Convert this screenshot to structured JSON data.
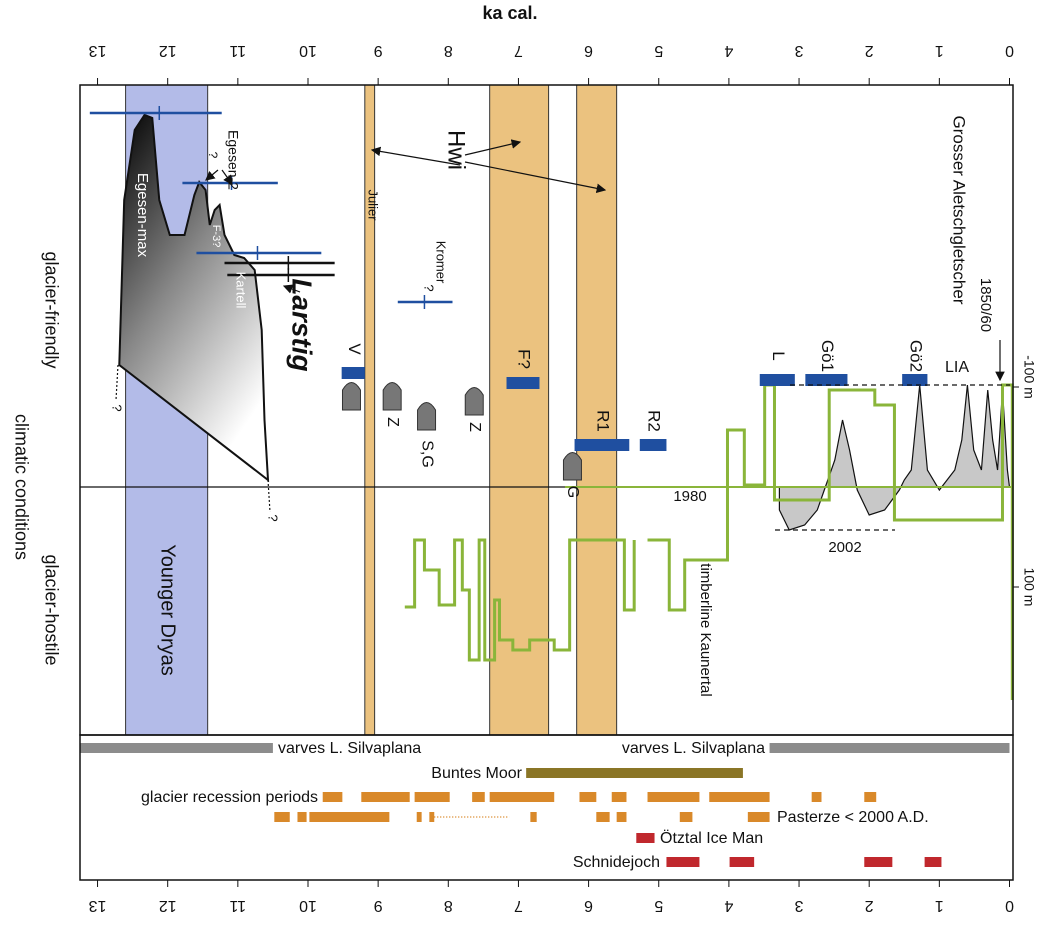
{
  "chart_data": {
    "type": "timeline",
    "xlabel": "ka cal.",
    "xlim": [
      13.25,
      -0.05
    ],
    "xticks": [
      13,
      12,
      11,
      10,
      9,
      8,
      7,
      6,
      5,
      4,
      3,
      2,
      1,
      0
    ],
    "ylim": [
      248,
      -402
    ],
    "yticks": [
      {
        "value": -100,
        "label": "-100 m"
      },
      {
        "value": 100,
        "label": "100 m"
      }
    ],
    "side_labels": [
      "glacier-friendly",
      "climatic conditions",
      "glacier-hostile"
    ],
    "bands": [
      {
        "range": [
          12.6,
          11.43
        ],
        "color": "#b3bbe8"
      },
      {
        "range": [
          9.19,
          9.05
        ],
        "color": "#ebc27f"
      },
      {
        "range": [
          7.41,
          6.57
        ],
        "color": "#ebc27f"
      },
      {
        "range": [
          6.17,
          5.6
        ],
        "color": "#ebc27f"
      }
    ],
    "aletsch": {
      "color": "#c8c8c8",
      "x": [
        3.28,
        3.14,
        2.92,
        2.74,
        2.64,
        2.49,
        2.38,
        2.28,
        2.17,
        2.0,
        1.78,
        1.57,
        1.5,
        1.4,
        1.28,
        1.17,
        1.0,
        0.78,
        0.68,
        0.6,
        0.51,
        0.4,
        0.31,
        0.24,
        0.17,
        0.1,
        0.03,
        0.0
      ],
      "y": [
        23,
        43,
        38,
        23,
        3,
        -27,
        -67,
        -37,
        3,
        28,
        23,
        3,
        -7,
        -17,
        -102,
        -17,
        3,
        -17,
        -47,
        -102,
        -37,
        -17,
        -97,
        -47,
        -17,
        -97,
        -17,
        0
      ]
    },
    "timberline": {
      "color": "#8ab53a",
      "x": [
        -0.04,
        -0.04,
        0.1,
        0.1,
        1.64,
        1.64,
        1.92,
        1.92,
        2.57,
        2.57,
        3.35,
        3.35,
        3.49,
        3.49,
        3.78,
        3.78,
        4.02,
        4.02,
        4.63,
        4.63,
        4.85,
        4.85,
        5.16,
        null,
        5.35,
        5.35,
        5.49,
        5.49,
        6.27,
        6.27,
        6.49,
        6.49,
        6.84,
        6.84,
        7.08,
        7.08,
        7.27,
        7.27,
        7.34,
        7.34,
        7.48,
        7.48,
        7.56,
        7.56,
        7.7,
        7.7,
        7.8,
        7.8,
        7.91,
        7.91,
        8.13,
        8.13,
        8.34,
        8.34,
        8.48,
        8.48,
        8.62
      ],
      "y": [
        213,
        -102,
        -102,
        33,
        33,
        -82,
        -82,
        -97,
        -97,
        13,
        13,
        -102,
        -102,
        -2,
        -2,
        -57,
        -57,
        73,
        73,
        123,
        123,
        53,
        53,
        null,
        53,
        123,
        123,
        53,
        53,
        163,
        163,
        153,
        153,
        163,
        163,
        153,
        153,
        113,
        113,
        173,
        173,
        53,
        53,
        173,
        173,
        103,
        103,
        53,
        53,
        118,
        118,
        83,
        83,
        53,
        53,
        120,
        120
      ]
    },
    "egesen": {
      "x": [
        12.69,
        12.62,
        12.47,
        12.33,
        12.22,
        12.12,
        11.97,
        11.76,
        11.62,
        11.55,
        11.46,
        11.4,
        11.33,
        11.26,
        11.19,
        11.05,
        10.91,
        10.76,
        10.66,
        10.62,
        10.57
      ],
      "y": [
        -122,
        -287,
        -357,
        -372,
        -369,
        -287,
        -252,
        -252,
        -292,
        -305,
        -297,
        -262,
        -277,
        -282,
        -252,
        -232,
        -229,
        -217,
        -157,
        -67,
        -7
      ]
    },
    "advances": [
      {
        "name": "V",
        "range": [
          9.52,
          9.19
        ],
        "level": -114
      },
      {
        "name": "F?",
        "range": [
          7.17,
          6.7
        ],
        "level": -104
      },
      {
        "name": "L",
        "range": [
          3.56,
          3.06
        ],
        "level": -107
      },
      {
        "name": "Gö1",
        "range": [
          2.91,
          2.31
        ],
        "level": -107
      },
      {
        "name": "Gö2",
        "range": [
          1.53,
          1.17
        ],
        "level": -107
      },
      {
        "name": "R1",
        "range": [
          6.2,
          5.42
        ],
        "level": -42
      },
      {
        "name": "R2",
        "range": [
          5.27,
          4.89
        ],
        "level": -42
      }
    ],
    "moraines": [
      {
        "x": 9.38,
        "level": -92
      },
      {
        "name": "Z",
        "x": 8.8,
        "level": -92
      },
      {
        "name": "S,G",
        "x": 8.31,
        "level": -72
      },
      {
        "name": "Z",
        "x": 7.63,
        "level": -87
      },
      {
        "name": "G",
        "x": 6.23,
        "level": -22
      }
    ],
    "error_bars": [
      {
        "range": [
          13.11,
          11.23
        ],
        "center": 12.12,
        "level": -374,
        "color": "#1f4fa0"
      },
      {
        "range": [
          11.79,
          10.43
        ],
        "center": 11.09,
        "level": -304,
        "color": "#1f4fa0"
      },
      {
        "range": [
          11.59,
          9.81
        ],
        "center": 10.72,
        "level": -234,
        "color": "#1f4fa0"
      },
      {
        "range": [
          8.72,
          7.94
        ],
        "center": 8.34,
        "level": -185,
        "color": "#1f4fa0"
      },
      {
        "range": [
          11.19,
          9.62
        ],
        "center": 10.28,
        "level": -224,
        "color": "#111111"
      },
      {
        "range": [
          11.15,
          9.62
        ],
        "center": 10.28,
        "level": -212,
        "color": "#111111"
      }
    ],
    "annotations": [
      "Grosser Aletschgletscher",
      "1850/60",
      "LIA",
      "1980",
      "2002",
      "timberline Kaunertal",
      "Hwi",
      "Julier",
      "Kromer",
      "Egesen-2",
      "F-3?",
      "Kartell",
      "Larstig",
      "Egesen-max",
      "Younger Dryas",
      "?",
      "?",
      "?",
      "?"
    ],
    "records": [
      {
        "name": "varves L. Silvaplana",
        "color": "#8c8c8c",
        "segments": [
          [
            13.25,
            10.5
          ]
        ]
      },
      {
        "name": "varves L. Silvaplana",
        "color": "#8c8c8c",
        "segments": [
          [
            3.42,
            0.0
          ]
        ]
      },
      {
        "name": "Buntes Moor",
        "color": "#8a7526",
        "segments": [
          [
            6.89,
            3.8
          ]
        ]
      },
      {
        "name": "glacier recession periods",
        "color": "#d9892a",
        "segments": [
          [
            9.79,
            9.51
          ],
          [
            9.24,
            8.55
          ],
          [
            8.48,
            7.98
          ],
          [
            7.66,
            7.48
          ],
          [
            7.41,
            6.49
          ],
          [
            6.13,
            5.89
          ],
          [
            5.67,
            5.46
          ],
          [
            5.16,
            4.42
          ],
          [
            4.28,
            3.42
          ],
          [
            2.82,
            2.68
          ],
          [
            2.07,
            1.9
          ]
        ]
      },
      {
        "name": "Pasterze < 2000 A.D.",
        "color": "#d9892a",
        "segments": [
          [
            10.48,
            10.26
          ],
          [
            10.15,
            10.02
          ],
          [
            9.98,
            8.84
          ],
          [
            8.45,
            8.38
          ],
          [
            8.27,
            8.2
          ],
          [
            6.83,
            6.74
          ],
          [
            5.89,
            5.7
          ],
          [
            5.6,
            5.46
          ],
          [
            4.7,
            4.52
          ],
          [
            3.73,
            3.42
          ]
        ],
        "dotted_segments": [
          [
            8.2,
            7.13
          ]
        ]
      },
      {
        "name": "Ötztal Ice Man",
        "color": "#c0282d",
        "segments": [
          [
            5.32,
            5.06
          ]
        ]
      },
      {
        "name": "Schnidejoch",
        "color": "#c0282d",
        "segments": [
          [
            4.89,
            4.42
          ],
          [
            3.99,
            3.64
          ],
          [
            2.07,
            1.67
          ],
          [
            1.21,
            0.97
          ]
        ]
      }
    ]
  }
}
